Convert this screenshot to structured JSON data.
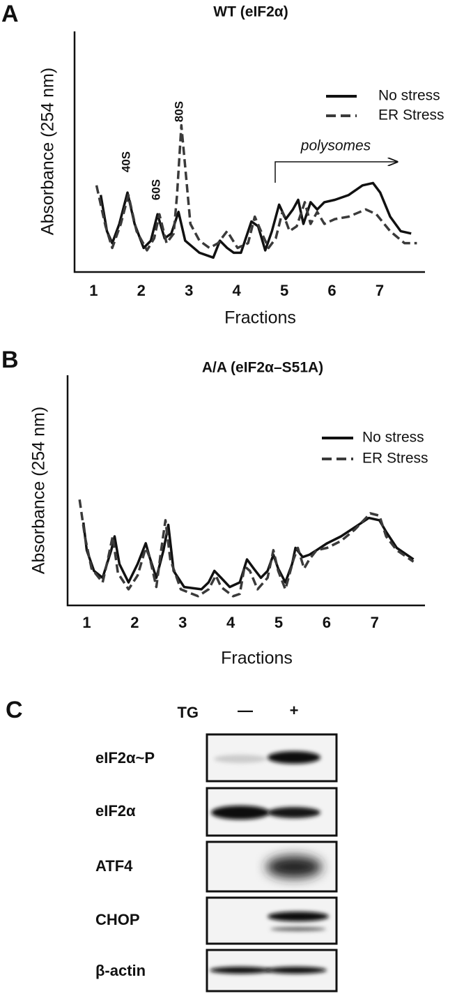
{
  "chart_data": [
    {
      "type": "line",
      "panel": "A",
      "title": "WT (eIF2α)",
      "xlabel": "Fractions",
      "ylabel": "Absorbance (254 nm)",
      "annotations": [
        "40S",
        "60S",
        "80S",
        "polysomes"
      ],
      "xlim": [
        0.6,
        7.95
      ],
      "ylim": [
        0,
        100
      ],
      "xticks": [
        1,
        2,
        3,
        4,
        5,
        6,
        7
      ],
      "grid": false,
      "legend": "upper right",
      "series": [
        {
          "name": "No stress",
          "color": "#111111",
          "dash": false,
          "x": [
            1.15,
            1.28,
            1.39,
            1.54,
            1.71,
            1.86,
            2.05,
            2.2,
            2.34,
            2.49,
            2.63,
            2.78,
            2.92,
            3.22,
            3.51,
            3.65,
            3.8,
            3.94,
            4.09,
            4.31,
            4.45,
            4.6,
            4.74,
            4.89,
            5.03,
            5.18,
            5.29,
            5.4,
            5.55,
            5.69,
            5.84,
            6.06,
            6.35,
            6.64,
            6.86,
            7.01,
            7.22,
            7.44,
            7.66
          ],
          "values": [
            32,
            17,
            12,
            20,
            33,
            20,
            10,
            13,
            24,
            14,
            16,
            25,
            13,
            8,
            6,
            13,
            10,
            8,
            8,
            21,
            19,
            9,
            17,
            28,
            22,
            26,
            30,
            20,
            29,
            26,
            29,
            30,
            32,
            36,
            37,
            33,
            23,
            17,
            16
          ]
        },
        {
          "name": "ER Stress",
          "color": "#3a3a3a",
          "dash": true,
          "x": [
            1.06,
            1.25,
            1.39,
            1.57,
            1.73,
            1.9,
            2.12,
            2.27,
            2.38,
            2.53,
            2.68,
            2.75,
            2.84,
            2.91,
            3.03,
            3.22,
            3.43,
            3.61,
            3.8,
            4.02,
            4.24,
            4.38,
            4.53,
            4.67,
            4.82,
            4.96,
            5.11,
            5.26,
            5.43,
            5.55,
            5.69,
            5.84,
            6.06,
            6.35,
            6.71,
            6.93,
            7.22,
            7.52,
            7.78
          ],
          "values": [
            36,
            19,
            10,
            20,
            32,
            17,
            9,
            14,
            24,
            12,
            16,
            32,
            61,
            46,
            20,
            13,
            10,
            12,
            17,
            10,
            12,
            23,
            16,
            10,
            14,
            25,
            17,
            19,
            29,
            20,
            25,
            20,
            22,
            23,
            26,
            24,
            17,
            12,
            12
          ]
        }
      ]
    },
    {
      "type": "line",
      "panel": "B",
      "title": "A/A (eIF2α–S51A)",
      "xlabel": "Fractions",
      "ylabel": "Absorbance (254 nm)",
      "xlim": [
        0.6,
        8.05
      ],
      "ylim": [
        0,
        100
      ],
      "xticks": [
        1,
        2,
        3,
        4,
        5,
        6,
        7
      ],
      "grid": false,
      "legend": "upper right",
      "series": [
        {
          "name": "No stress",
          "color": "#111111",
          "dash": false,
          "x": [
            0.93,
            1.0,
            1.15,
            1.33,
            1.51,
            1.58,
            1.68,
            1.87,
            2.06,
            2.23,
            2.31,
            2.45,
            2.6,
            2.7,
            2.81,
            3.03,
            3.39,
            3.54,
            3.66,
            3.8,
            3.98,
            4.19,
            4.34,
            4.48,
            4.63,
            4.77,
            4.89,
            4.99,
            5.14,
            5.28,
            5.35,
            5.5,
            5.64,
            5.79,
            6.01,
            6.3,
            6.59,
            6.88,
            7.1,
            7.24,
            7.46,
            7.81
          ],
          "values": [
            36,
            24,
            15,
            12,
            24,
            30,
            18,
            10,
            18,
            27,
            21,
            12,
            24,
            35,
            15,
            8,
            7,
            10,
            15,
            12,
            8,
            10,
            20,
            16,
            12,
            15,
            22,
            16,
            10,
            18,
            25,
            21,
            22,
            24,
            27,
            30,
            34,
            38,
            37,
            32,
            25,
            20
          ]
        },
        {
          "name": "ER Stress",
          "color": "#3a3a3a",
          "dash": true,
          "x": [
            0.85,
            0.96,
            1.1,
            1.33,
            1.44,
            1.54,
            1.65,
            1.87,
            2.06,
            2.23,
            2.31,
            2.45,
            2.55,
            2.64,
            2.74,
            2.96,
            3.32,
            3.54,
            3.69,
            3.8,
            4.05,
            4.19,
            4.29,
            4.4,
            4.56,
            4.77,
            4.89,
            4.99,
            5.14,
            5.31,
            5.4,
            5.53,
            5.64,
            5.79,
            6.01,
            6.3,
            6.59,
            6.91,
            7.1,
            7.24,
            7.46,
            7.81
          ],
          "values": [
            46,
            30,
            16,
            10,
            20,
            30,
            14,
            7,
            13,
            25,
            21,
            8,
            24,
            37,
            20,
            7,
            4,
            7,
            13,
            8,
            4,
            5,
            17,
            15,
            7,
            12,
            24,
            15,
            7,
            20,
            25,
            16,
            20,
            24,
            25,
            28,
            33,
            40,
            39,
            30,
            24,
            19
          ]
        }
      ]
    }
  ],
  "blot": {
    "panel": "C",
    "treatment": "TG",
    "columns": [
      "—",
      "+"
    ],
    "rows": [
      "eIF2α~P",
      "eIF2α",
      "ATF4",
      "CHOP",
      "β-actin"
    ]
  }
}
